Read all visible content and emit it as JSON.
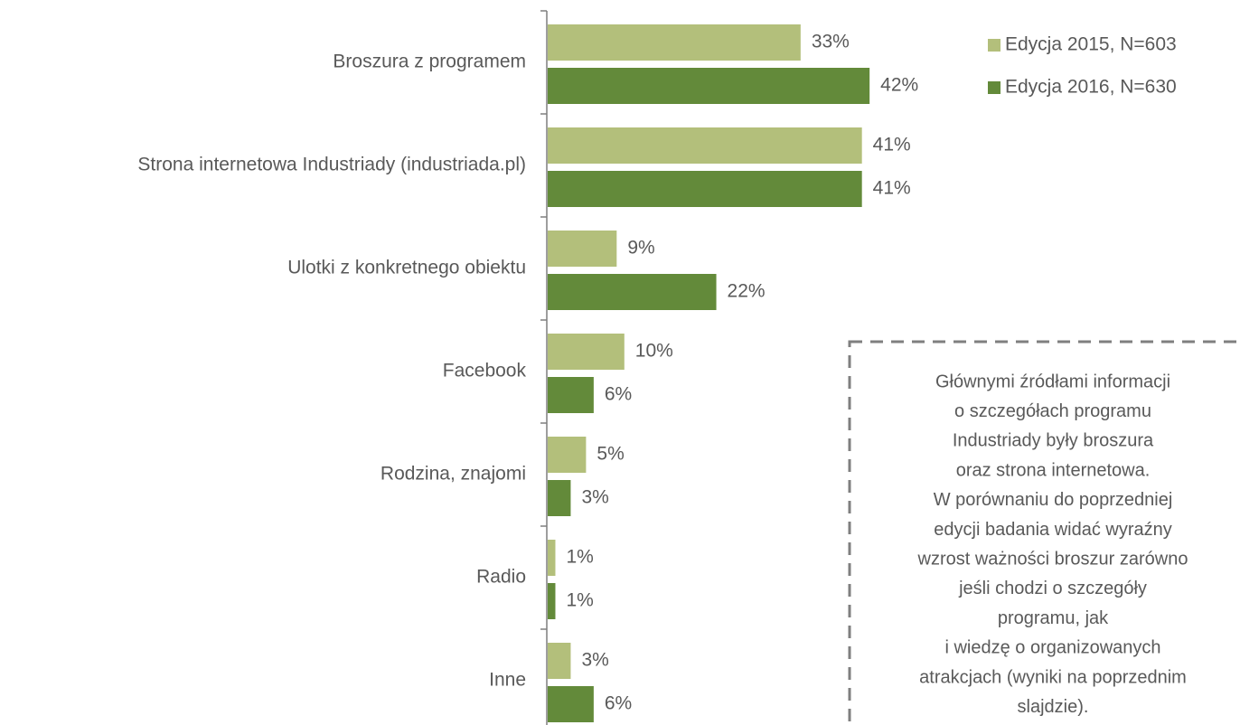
{
  "chart_data": {
    "type": "barh",
    "categories": [
      "Broszura z programem",
      "Strona internetowa Industriady (industriada.pl)",
      "Ulotki z konkretnego obiektu",
      "Facebook",
      "Rodzina, znajomi",
      "Radio",
      "Inne"
    ],
    "series": [
      {
        "name": "Edycja 2015, N=603",
        "color": "#b3bf7b",
        "values": [
          33,
          41,
          9,
          10,
          5,
          1,
          3
        ],
        "value_labels": [
          "33%",
          "41%",
          "9%",
          "10%",
          "5%",
          "1%",
          "3%"
        ]
      },
      {
        "name": "Edycja 2016, N=630",
        "color": "#638a3a",
        "values": [
          42,
          41,
          22,
          6,
          3,
          1,
          6
        ],
        "value_labels": [
          "42%",
          "41%",
          "22%",
          "6%",
          "3%",
          "1%",
          "6%"
        ]
      }
    ],
    "xlim": [
      0,
      50
    ],
    "legend": "top-right",
    "annotation": [
      "Głównymi źródłami informacji",
      "o szczegółach programu",
      "Industriady były broszura",
      "oraz strona internetowa.",
      "W porównaniu do poprzedniej",
      "edycji badania widać wyraźny",
      "wzrost ważności broszur zarówno",
      "jeśli chodzi o szczegóły",
      "programu, jak",
      "i wiedzę o organizowanych",
      "atrakcjach (wyniki na poprzednim",
      "slajdzie)."
    ]
  }
}
